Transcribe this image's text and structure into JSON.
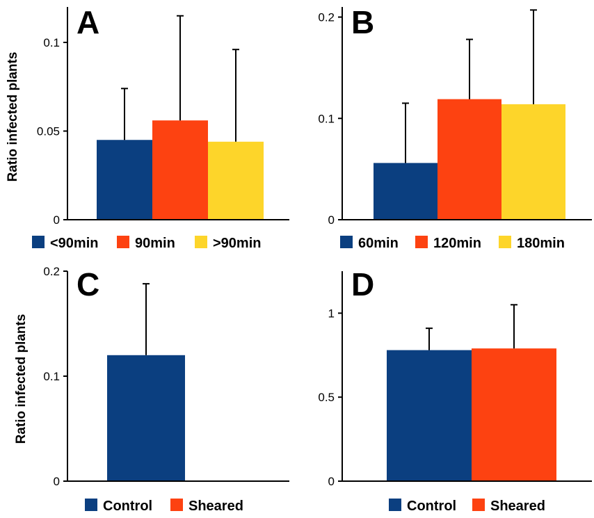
{
  "colors": {
    "blue": "#0b3f80",
    "orange": "#fd4211",
    "yellow": "#fdd52a"
  },
  "chart_data": [
    {
      "id": "A",
      "type": "bar",
      "panel_label": "A",
      "ylabel": "Ratio infected plants",
      "ylim": [
        0,
        0.12
      ],
      "yticks": [
        0,
        0.05,
        0.1
      ],
      "ytick_labels": [
        "0",
        "0.05",
        "0.1"
      ],
      "series": [
        {
          "name": "<90min",
          "value": 0.045,
          "error": 0.029,
          "color": "#0b3f80"
        },
        {
          "name": "90min",
          "value": 0.056,
          "error": 0.059,
          "color": "#fd4211"
        },
        {
          "name": ">90min",
          "value": 0.044,
          "error": 0.052,
          "color": "#fdd52a"
        }
      ],
      "legend": [
        "<90min",
        "90min",
        ">90min"
      ]
    },
    {
      "id": "B",
      "type": "bar",
      "panel_label": "B",
      "ylabel": "",
      "ylim": [
        0,
        0.21
      ],
      "yticks": [
        0,
        0.1,
        0.2
      ],
      "ytick_labels": [
        "0",
        "0.1",
        "0.2"
      ],
      "series": [
        {
          "name": "60min",
          "value": 0.056,
          "error": 0.059,
          "color": "#0b3f80"
        },
        {
          "name": "120min",
          "value": 0.119,
          "error": 0.059,
          "color": "#fd4211"
        },
        {
          "name": "180min",
          "value": 0.114,
          "error": 0.093,
          "color": "#fdd52a"
        }
      ],
      "legend": [
        "60min",
        "120min",
        "180min"
      ]
    },
    {
      "id": "C",
      "type": "bar",
      "panel_label": "C",
      "ylabel": "Ratio infected plants",
      "ylim": [
        0,
        0.2
      ],
      "yticks": [
        0,
        0.1,
        0.2
      ],
      "ytick_labels": [
        "0",
        "0.1",
        "0.2"
      ],
      "series": [
        {
          "name": "Control",
          "value": 0.12,
          "error": 0.068,
          "color": "#0b3f80"
        },
        {
          "name": "Sheared",
          "value": 0,
          "error": 0,
          "color": "#fd4211"
        }
      ],
      "legend": [
        "Control",
        "Sheared"
      ]
    },
    {
      "id": "D",
      "type": "bar",
      "panel_label": "D",
      "ylabel": "",
      "ylim": [
        0,
        1.25
      ],
      "yticks": [
        0,
        0.5,
        1
      ],
      "ytick_labels": [
        "0",
        "0.5",
        "1"
      ],
      "series": [
        {
          "name": "Control",
          "value": 0.78,
          "error": 0.13,
          "color": "#0b3f80"
        },
        {
          "name": "Sheared",
          "value": 0.79,
          "error": 0.26,
          "color": "#fd4211"
        }
      ],
      "legend": [
        "Control",
        "Sheared"
      ]
    }
  ]
}
